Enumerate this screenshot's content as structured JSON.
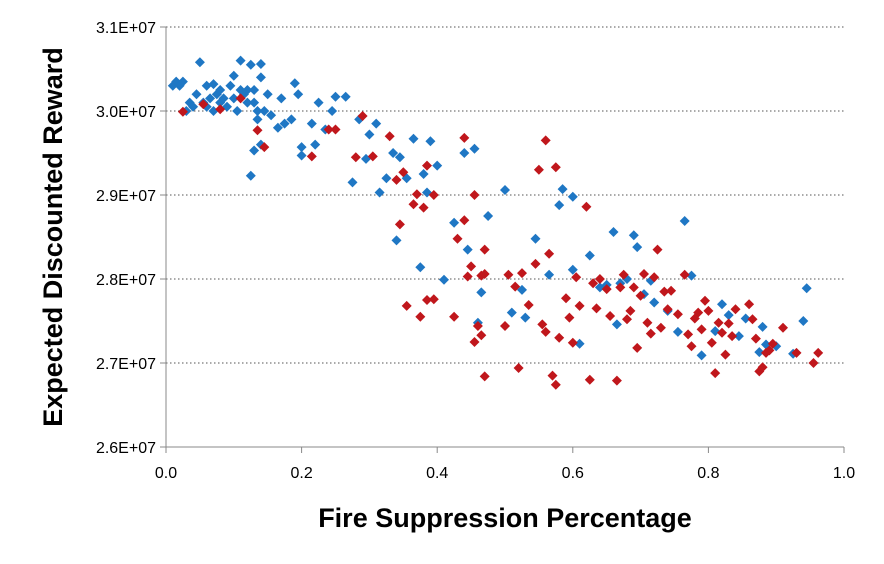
{
  "chart_data": {
    "type": "scatter",
    "title": "",
    "xlabel": "Fire Suppression Percentage",
    "ylabel": "Expected Discounted Reward",
    "xlim": [
      0,
      1
    ],
    "ylim": [
      26000000,
      31000000
    ],
    "x_ticks": [
      "0.0",
      "0.2",
      "0.4",
      "0.6",
      "0.8",
      "1.0"
    ],
    "y_ticks": [
      "2.6E+07",
      "2.7E+07",
      "2.8E+07",
      "2.9E+07",
      "3.0E+07",
      "3.1E+07"
    ],
    "grid": "horizontal dotted",
    "legend": "none",
    "marker": "diamond",
    "series": [
      {
        "color": "#1f77c4",
        "points": [
          [
            0.01,
            30300000
          ],
          [
            0.015,
            30350000
          ],
          [
            0.02,
            30300000
          ],
          [
            0.025,
            30350000
          ],
          [
            0.03,
            30000000
          ],
          [
            0.035,
            30100000
          ],
          [
            0.04,
            30050000
          ],
          [
            0.045,
            30200000
          ],
          [
            0.05,
            30580000
          ],
          [
            0.055,
            30100000
          ],
          [
            0.06,
            30050000
          ],
          [
            0.06,
            30300000
          ],
          [
            0.065,
            30150000
          ],
          [
            0.07,
            30000000
          ],
          [
            0.07,
            30320000
          ],
          [
            0.075,
            30200000
          ],
          [
            0.08,
            30100000
          ],
          [
            0.08,
            30250000
          ],
          [
            0.085,
            30150000
          ],
          [
            0.09,
            30050000
          ],
          [
            0.095,
            30300000
          ],
          [
            0.1,
            30150000
          ],
          [
            0.1,
            30420000
          ],
          [
            0.105,
            30000000
          ],
          [
            0.11,
            30250000
          ],
          [
            0.11,
            30600000
          ],
          [
            0.115,
            30200000
          ],
          [
            0.12,
            30100000
          ],
          [
            0.12,
            30250000
          ],
          [
            0.125,
            30550000
          ],
          [
            0.125,
            29230000
          ],
          [
            0.13,
            30250000
          ],
          [
            0.13,
            30100000
          ],
          [
            0.13,
            29530000
          ],
          [
            0.135,
            30000000
          ],
          [
            0.135,
            29900000
          ],
          [
            0.14,
            30560000
          ],
          [
            0.14,
            30400000
          ],
          [
            0.14,
            29600000
          ],
          [
            0.145,
            30000000
          ],
          [
            0.15,
            30200000
          ],
          [
            0.155,
            29950000
          ],
          [
            0.165,
            29800000
          ],
          [
            0.17,
            30150000
          ],
          [
            0.175,
            29850000
          ],
          [
            0.185,
            29900000
          ],
          [
            0.19,
            30330000
          ],
          [
            0.195,
            30200000
          ],
          [
            0.2,
            29570000
          ],
          [
            0.2,
            29470000
          ],
          [
            0.215,
            29850000
          ],
          [
            0.22,
            29600000
          ],
          [
            0.225,
            30100000
          ],
          [
            0.235,
            29780000
          ],
          [
            0.245,
            30000000
          ],
          [
            0.25,
            30170000
          ],
          [
            0.265,
            30170000
          ],
          [
            0.275,
            29150000
          ],
          [
            0.285,
            29900000
          ],
          [
            0.295,
            29430000
          ],
          [
            0.3,
            29720000
          ],
          [
            0.31,
            29850000
          ],
          [
            0.315,
            29030000
          ],
          [
            0.325,
            29200000
          ],
          [
            0.335,
            29500000
          ],
          [
            0.34,
            28460000
          ],
          [
            0.345,
            29450000
          ],
          [
            0.355,
            29200000
          ],
          [
            0.365,
            29670000
          ],
          [
            0.375,
            28140000
          ],
          [
            0.38,
            29250000
          ],
          [
            0.385,
            29030000
          ],
          [
            0.39,
            29640000
          ],
          [
            0.4,
            29350000
          ],
          [
            0.41,
            27990000
          ],
          [
            0.425,
            28670000
          ],
          [
            0.445,
            28350000
          ],
          [
            0.44,
            29500000
          ],
          [
            0.455,
            29550000
          ],
          [
            0.46,
            27480000
          ],
          [
            0.465,
            27840000
          ],
          [
            0.475,
            28750000
          ],
          [
            0.5,
            29060000
          ],
          [
            0.51,
            27600000
          ],
          [
            0.525,
            27870000
          ],
          [
            0.53,
            27540000
          ],
          [
            0.545,
            28480000
          ],
          [
            0.565,
            28050000
          ],
          [
            0.58,
            28880000
          ],
          [
            0.585,
            29070000
          ],
          [
            0.6,
            28980000
          ],
          [
            0.6,
            28110000
          ],
          [
            0.61,
            27230000
          ],
          [
            0.625,
            28280000
          ],
          [
            0.64,
            27900000
          ],
          [
            0.65,
            27930000
          ],
          [
            0.66,
            28560000
          ],
          [
            0.665,
            27460000
          ],
          [
            0.67,
            27950000
          ],
          [
            0.68,
            28000000
          ],
          [
            0.69,
            28520000
          ],
          [
            0.695,
            28380000
          ],
          [
            0.705,
            27820000
          ],
          [
            0.715,
            27980000
          ],
          [
            0.72,
            27720000
          ],
          [
            0.74,
            27620000
          ],
          [
            0.755,
            27370000
          ],
          [
            0.765,
            28690000
          ],
          [
            0.775,
            28040000
          ],
          [
            0.79,
            27090000
          ],
          [
            0.81,
            27380000
          ],
          [
            0.82,
            27700000
          ],
          [
            0.83,
            27570000
          ],
          [
            0.845,
            27320000
          ],
          [
            0.855,
            27530000
          ],
          [
            0.875,
            27130000
          ],
          [
            0.88,
            27430000
          ],
          [
            0.885,
            27220000
          ],
          [
            0.9,
            27200000
          ],
          [
            0.925,
            27110000
          ],
          [
            0.94,
            27500000
          ],
          [
            0.945,
            27890000
          ]
        ]
      },
      {
        "color": "#c0171c",
        "points": [
          [
            0.025,
            29990000
          ],
          [
            0.055,
            30080000
          ],
          [
            0.08,
            30020000
          ],
          [
            0.11,
            30150000
          ],
          [
            0.135,
            29770000
          ],
          [
            0.145,
            29570000
          ],
          [
            0.215,
            29460000
          ],
          [
            0.24,
            29780000
          ],
          [
            0.25,
            29780000
          ],
          [
            0.28,
            29450000
          ],
          [
            0.29,
            29940000
          ],
          [
            0.305,
            29460000
          ],
          [
            0.33,
            29700000
          ],
          [
            0.34,
            29180000
          ],
          [
            0.345,
            28650000
          ],
          [
            0.35,
            29270000
          ],
          [
            0.355,
            27680000
          ],
          [
            0.365,
            28890000
          ],
          [
            0.37,
            29010000
          ],
          [
            0.375,
            27550000
          ],
          [
            0.38,
            28850000
          ],
          [
            0.385,
            27750000
          ],
          [
            0.385,
            29350000
          ],
          [
            0.395,
            27760000
          ],
          [
            0.395,
            29000000
          ],
          [
            0.425,
            27550000
          ],
          [
            0.43,
            28480000
          ],
          [
            0.44,
            28700000
          ],
          [
            0.44,
            29680000
          ],
          [
            0.445,
            28030000
          ],
          [
            0.45,
            28150000
          ],
          [
            0.455,
            27250000
          ],
          [
            0.455,
            29000000
          ],
          [
            0.46,
            27440000
          ],
          [
            0.465,
            27330000
          ],
          [
            0.465,
            28040000
          ],
          [
            0.47,
            28060000
          ],
          [
            0.47,
            28350000
          ],
          [
            0.47,
            26840000
          ],
          [
            0.5,
            27440000
          ],
          [
            0.505,
            28050000
          ],
          [
            0.515,
            27910000
          ],
          [
            0.52,
            26940000
          ],
          [
            0.525,
            28070000
          ],
          [
            0.535,
            27690000
          ],
          [
            0.545,
            28180000
          ],
          [
            0.55,
            29300000
          ],
          [
            0.555,
            27460000
          ],
          [
            0.56,
            27370000
          ],
          [
            0.56,
            29650000
          ],
          [
            0.565,
            28300000
          ],
          [
            0.57,
            26850000
          ],
          [
            0.575,
            26740000
          ],
          [
            0.575,
            29330000
          ],
          [
            0.58,
            27300000
          ],
          [
            0.59,
            27770000
          ],
          [
            0.595,
            27540000
          ],
          [
            0.6,
            27240000
          ],
          [
            0.605,
            28020000
          ],
          [
            0.61,
            27680000
          ],
          [
            0.62,
            28860000
          ],
          [
            0.625,
            26800000
          ],
          [
            0.63,
            27950000
          ],
          [
            0.635,
            27650000
          ],
          [
            0.64,
            28000000
          ],
          [
            0.65,
            27880000
          ],
          [
            0.655,
            27560000
          ],
          [
            0.665,
            26790000
          ],
          [
            0.67,
            27900000
          ],
          [
            0.675,
            28050000
          ],
          [
            0.68,
            27520000
          ],
          [
            0.685,
            27620000
          ],
          [
            0.69,
            27900000
          ],
          [
            0.695,
            27180000
          ],
          [
            0.7,
            27800000
          ],
          [
            0.705,
            28060000
          ],
          [
            0.71,
            27480000
          ],
          [
            0.715,
            27350000
          ],
          [
            0.72,
            28020000
          ],
          [
            0.725,
            28350000
          ],
          [
            0.73,
            27420000
          ],
          [
            0.735,
            27850000
          ],
          [
            0.74,
            27640000
          ],
          [
            0.745,
            27860000
          ],
          [
            0.755,
            27580000
          ],
          [
            0.765,
            28050000
          ],
          [
            0.77,
            27340000
          ],
          [
            0.775,
            27200000
          ],
          [
            0.78,
            27530000
          ],
          [
            0.785,
            27600000
          ],
          [
            0.79,
            27400000
          ],
          [
            0.795,
            27740000
          ],
          [
            0.8,
            27620000
          ],
          [
            0.805,
            27240000
          ],
          [
            0.81,
            26880000
          ],
          [
            0.815,
            27480000
          ],
          [
            0.82,
            27360000
          ],
          [
            0.825,
            27100000
          ],
          [
            0.83,
            27470000
          ],
          [
            0.835,
            27320000
          ],
          [
            0.84,
            27640000
          ],
          [
            0.86,
            27700000
          ],
          [
            0.865,
            27520000
          ],
          [
            0.87,
            27290000
          ],
          [
            0.875,
            26900000
          ],
          [
            0.88,
            26950000
          ],
          [
            0.885,
            27120000
          ],
          [
            0.89,
            27150000
          ],
          [
            0.895,
            27230000
          ],
          [
            0.91,
            27420000
          ],
          [
            0.93,
            27120000
          ],
          [
            0.955,
            27000000
          ],
          [
            0.962,
            27120000
          ]
        ]
      }
    ]
  }
}
